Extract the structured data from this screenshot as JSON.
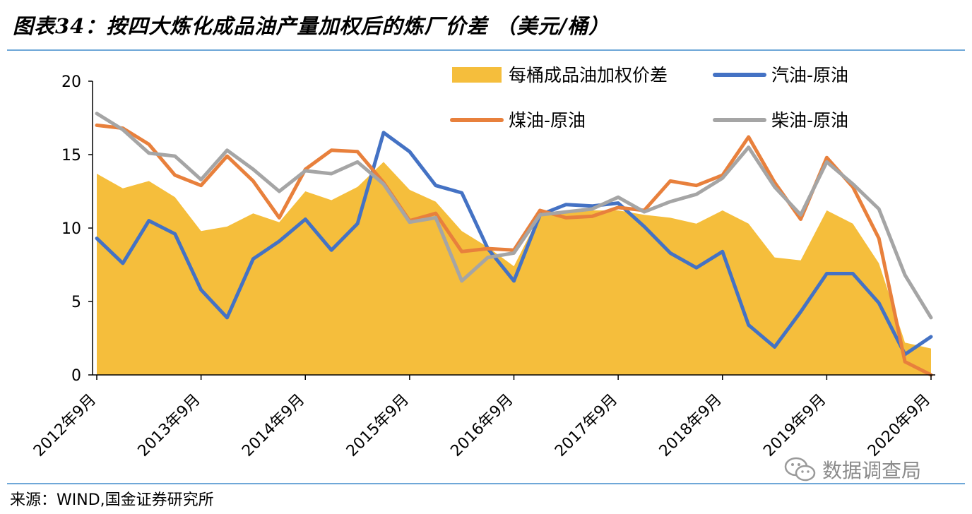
{
  "header": {
    "title": "图表34：按四大炼化成品油产量加权后的炼厂价差 （美元/桶）"
  },
  "footer": {
    "source": "来源：WIND,国金证券研究所"
  },
  "watermark": {
    "text": "数据调查局",
    "icon": "wechat-logo"
  },
  "colors": {
    "area": "#F5BE3C",
    "gasoline": "#4472C4",
    "jet": "#E8803C",
    "diesel": "#A5A5A5",
    "rule": "#6FA8D8"
  },
  "chart_data": {
    "type": "line",
    "title": "按四大炼化成品油产量加权后的炼厂价差 （美元/桶）",
    "ylim": [
      0,
      20
    ],
    "yticks": [
      0,
      5,
      10,
      15,
      20
    ],
    "ytick_labels": [
      "0",
      "5",
      "10",
      "15",
      "20"
    ],
    "xtick_labels": [
      "2012年9月",
      "2013年9月",
      "2014年9月",
      "2015年9月",
      "2016年9月",
      "2017年9月",
      "2018年9月",
      "2019年9月",
      "2020年9月"
    ],
    "xtick_index": [
      0,
      4,
      8,
      12,
      16,
      20,
      24,
      28,
      32
    ],
    "x": [
      "2012-09",
      "2012-12",
      "2013-03",
      "2013-06",
      "2013-09",
      "2013-12",
      "2014-03",
      "2014-06",
      "2014-09",
      "2014-12",
      "2015-03",
      "2015-06",
      "2015-09",
      "2015-12",
      "2016-03",
      "2016-06",
      "2016-09",
      "2016-12",
      "2017-03",
      "2017-06",
      "2017-09",
      "2017-12",
      "2018-03",
      "2018-06",
      "2018-09",
      "2018-12",
      "2019-03",
      "2019-06",
      "2019-09",
      "2019-12",
      "2020-03",
      "2020-06",
      "2020-09"
    ],
    "legend_position": "top",
    "series": [
      {
        "name": "每桶成品油加权价差",
        "kind": "area",
        "values": [
          13.7,
          12.7,
          13.2,
          12.1,
          9.8,
          10.1,
          11.0,
          10.4,
          12.5,
          11.9,
          12.8,
          14.5,
          12.6,
          11.8,
          9.8,
          8.7,
          7.4,
          10.9,
          11.1,
          11.2,
          11.2,
          10.9,
          10.7,
          10.3,
          11.2,
          10.3,
          8.0,
          7.8,
          11.2,
          10.3,
          7.6,
          2.2,
          1.8
        ]
      },
      {
        "name": "汽油-原油",
        "kind": "line",
        "values": [
          9.3,
          7.6,
          10.5,
          9.6,
          5.8,
          3.9,
          7.9,
          9.1,
          10.6,
          8.5,
          10.3,
          16.5,
          15.2,
          12.9,
          12.4,
          8.6,
          6.4,
          10.9,
          11.6,
          11.5,
          11.7,
          10.1,
          8.3,
          7.3,
          8.4,
          3.4,
          1.9,
          4.3,
          6.9,
          6.9,
          4.9,
          1.4,
          2.6
        ]
      },
      {
        "name": "煤油-原油",
        "kind": "line",
        "values": [
          17.0,
          16.8,
          15.7,
          13.6,
          12.9,
          14.9,
          13.2,
          10.7,
          14.0,
          15.3,
          15.2,
          13.1,
          10.5,
          11.0,
          8.4,
          8.6,
          8.5,
          11.2,
          10.7,
          10.8,
          11.4,
          11.2,
          13.2,
          12.9,
          13.6,
          16.2,
          13.1,
          10.6,
          14.8,
          12.8,
          9.3,
          0.9,
          -0.2
        ]
      },
      {
        "name": "柴油-原油",
        "kind": "line",
        "values": [
          17.8,
          16.7,
          15.1,
          14.9,
          13.3,
          15.3,
          14.0,
          12.5,
          13.9,
          13.7,
          14.5,
          13.0,
          10.4,
          10.7,
          6.4,
          8.0,
          8.3,
          10.9,
          11.1,
          11.3,
          12.1,
          11.1,
          11.8,
          12.3,
          13.4,
          15.5,
          12.8,
          10.9,
          14.5,
          13.0,
          11.3,
          6.8,
          3.9
        ]
      }
    ]
  }
}
